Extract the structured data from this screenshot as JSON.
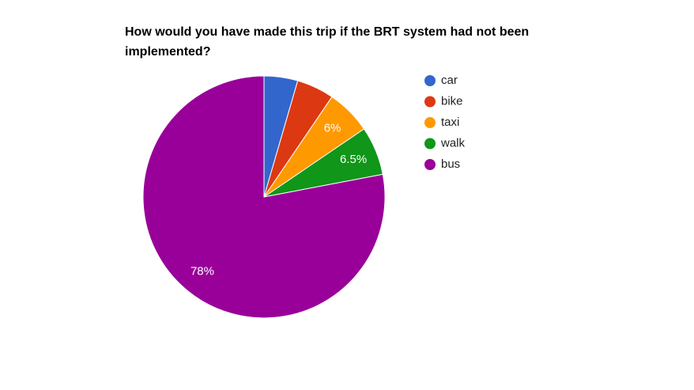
{
  "chart_data": {
    "type": "pie",
    "title": "How would you have made this trip if the BRT system had not been implemented?",
    "categories": [
      "car",
      "bike",
      "taxi",
      "walk",
      "bus"
    ],
    "values": [
      4.5,
      5,
      6,
      6.5,
      78
    ],
    "value_labels": [
      null,
      null,
      "6%",
      "6.5%",
      "78%"
    ],
    "colors": [
      "#3366cc",
      "#dc3912",
      "#ff9900",
      "#109618",
      "#990099"
    ],
    "legend": "right"
  }
}
